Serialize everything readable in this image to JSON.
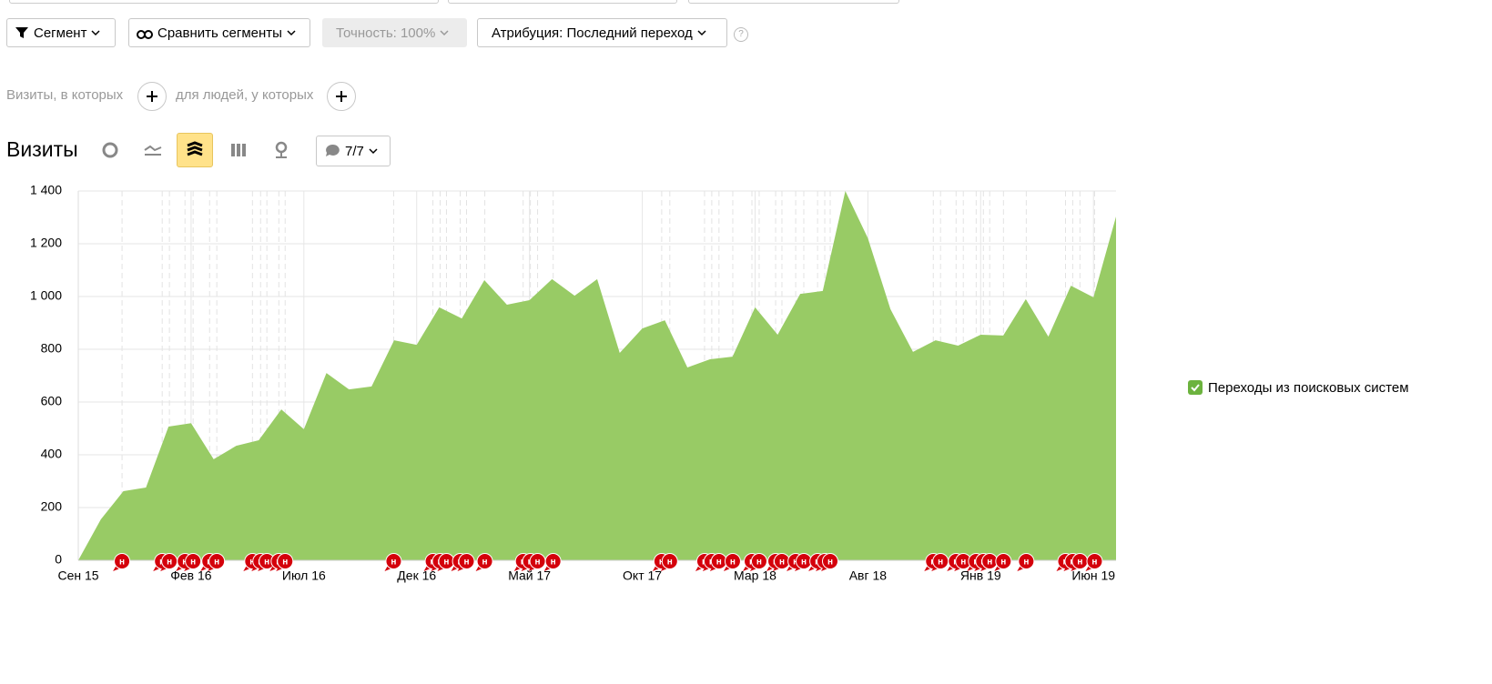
{
  "toolbar": {
    "segment": "Сегмент",
    "compare": "Сравнить сегменты",
    "accuracy": "Точность: 100%",
    "attribution": "Атрибуция: Последний переход",
    "help": "?"
  },
  "filter": {
    "visits": "Визиты, в которых",
    "people": "для людей, у которых"
  },
  "report": {
    "title": "Визиты",
    "annotations_toggle": "7/7"
  },
  "chart_data": {
    "type": "area",
    "categories": [
      "Сен 15",
      null,
      null,
      null,
      null,
      "Фев 16",
      null,
      null,
      null,
      null,
      "Июл 16",
      null,
      null,
      null,
      null,
      "Дек 16",
      null,
      null,
      null,
      null,
      "Май 17",
      null,
      null,
      null,
      null,
      "Окт 17",
      null,
      null,
      null,
      null,
      "Мар 18",
      null,
      null,
      null,
      null,
      "Авг 18",
      null,
      null,
      null,
      null,
      "Янв 19",
      null,
      null,
      null,
      null,
      "Июн 19",
      null
    ],
    "series": [
      {
        "name": "Переходы из поисковых систем",
        "color": "#98cb65",
        "values": [
          0,
          155,
          262,
          276,
          507,
          520,
          383,
          434,
          455,
          572,
          497,
          710,
          648,
          659,
          834,
          817,
          959,
          917,
          1062,
          969,
          986,
          1066,
          1003,
          1066,
          786,
          879,
          910,
          731,
          762,
          772,
          959,
          855,
          1010,
          1021,
          1400,
          1221,
          952,
          790,
          834,
          814,
          855,
          852,
          990,
          848,
          1041,
          997,
          1303
        ]
      }
    ],
    "ylim": [
      0,
      1400
    ],
    "yticks": [
      0,
      200,
      400,
      600,
      800,
      {
        "value": 1000,
        "label": "1 000"
      },
      {
        "value": 1200,
        "label": "1 200"
      },
      {
        "value": 1400,
        "label": "1 400"
      }
    ],
    "grid": true,
    "legend": "right",
    "annotation_label": "н",
    "annotation_x": [
      1.94,
      3.72,
      4.04,
      4.73,
      5.09,
      5.82,
      6.14,
      7.72,
      8.08,
      8.36,
      8.89,
      9.17,
      13.98,
      15.72,
      16.04,
      16.32,
      16.93,
      17.21,
      18.02,
      19.72,
      20.04,
      20.36,
      21.05,
      25.86,
      26.22,
      27.76,
      28.08,
      28.4,
      29.01,
      29.86,
      30.18,
      30.91,
      31.19,
      31.8,
      32.16,
      32.77,
      33.09,
      33.33,
      37.9,
      38.22,
      38.91,
      39.23,
      39.8,
      40.12,
      40.4,
      41.01,
      42.02,
      43.76,
      44.08,
      44.4,
      45.05
    ]
  }
}
